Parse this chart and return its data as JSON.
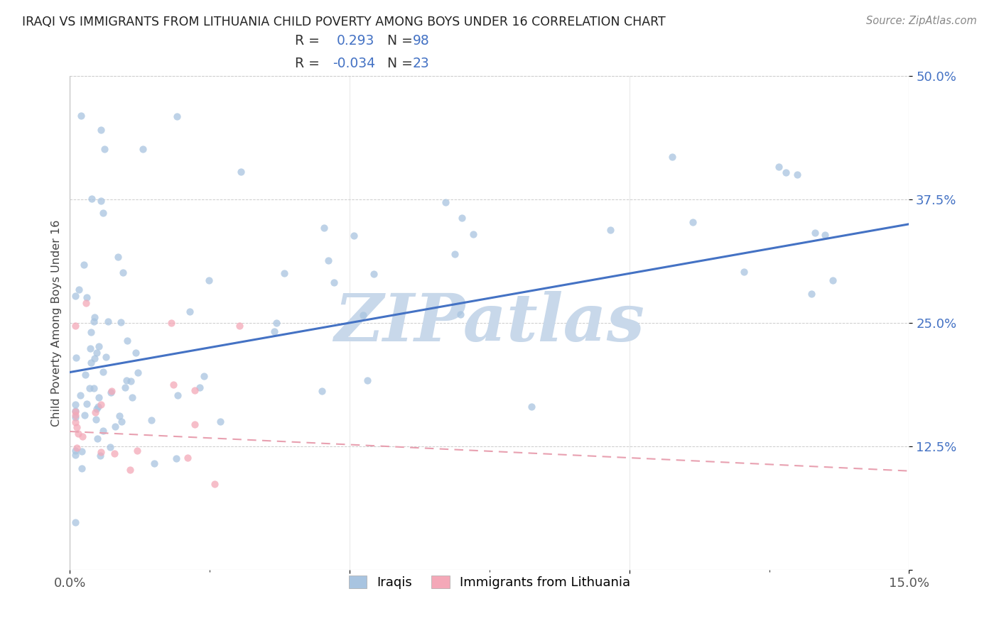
{
  "title": "IRAQI VS IMMIGRANTS FROM LITHUANIA CHILD POVERTY AMONG BOYS UNDER 16 CORRELATION CHART",
  "source": "Source: ZipAtlas.com",
  "ylabel": "Child Poverty Among Boys Under 16",
  "xlim": [
    0.0,
    0.15
  ],
  "ylim": [
    0.0,
    0.5
  ],
  "xticks": [
    0.0,
    0.05,
    0.1,
    0.15
  ],
  "xticklabels": [
    "0.0%",
    "",
    "",
    "15.0%"
  ],
  "yticks": [
    0.0,
    0.125,
    0.25,
    0.375,
    0.5
  ],
  "yticklabels": [
    "",
    "12.5%",
    "25.0%",
    "37.5%",
    "50.0%"
  ],
  "iraqi_R": 0.293,
  "iraqi_N": 98,
  "lith_R": -0.034,
  "lith_N": 23,
  "iraqi_color": "#a8c4e0",
  "lith_color": "#f4a8b8",
  "iraqi_line_color": "#4472c4",
  "lith_line_color": "#e8a0b0",
  "watermark_text": "ZIPatlas",
  "watermark_color": "#c8d8ea",
  "background_color": "#ffffff",
  "grid_color": "#cccccc",
  "legend_iraqi_label": "Iraqis",
  "legend_lith_label": "Immigrants from Lithuania"
}
